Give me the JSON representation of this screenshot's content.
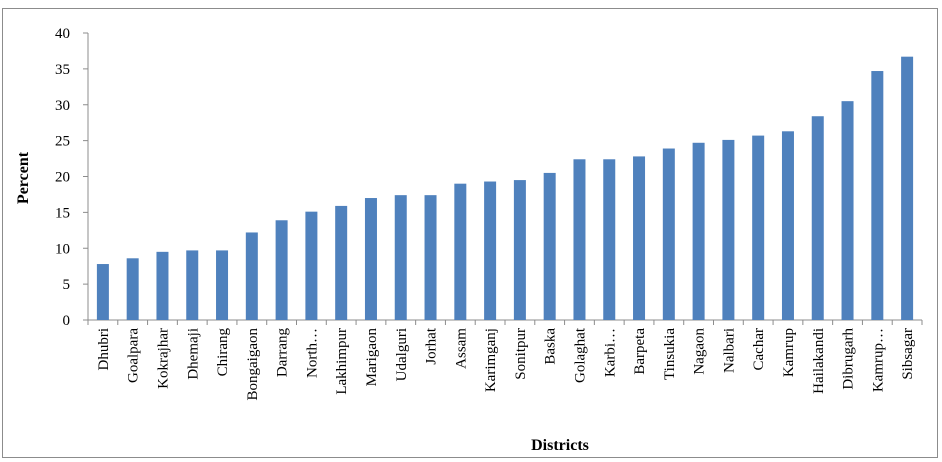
{
  "chart_data": {
    "type": "bar",
    "title": "",
    "xlabel": "Districts",
    "ylabel": "Percent",
    "ylim": [
      0,
      40
    ],
    "yticks": [
      0,
      5,
      10,
      15,
      20,
      25,
      30,
      35,
      40
    ],
    "grid": false,
    "legend": "none",
    "bar_color": "#4f81bd",
    "categories": [
      "Dhubri",
      "Goalpara",
      "Kokrajhar",
      "Dhemaji",
      "Chirang",
      "Bongaigaon",
      "Darrang",
      "North…",
      "Lakhimpur",
      "Marigaon",
      "Udalguri",
      "Jorhat",
      "Assam",
      "Karimganj",
      "Sonitpur",
      "Baska",
      "Golaghat",
      "Karbi…",
      "Barpeta",
      "Tinsukia",
      "Nagaon",
      "Nalbari",
      "Cachar",
      "Kamrup",
      "Hailakandi",
      "Dibrugarh",
      "Kamrup…",
      "Sibsagar"
    ],
    "values": [
      7.8,
      8.6,
      9.5,
      9.7,
      9.7,
      12.2,
      13.9,
      15.1,
      15.9,
      17.0,
      17.4,
      17.4,
      19.0,
      19.3,
      19.5,
      20.5,
      22.4,
      22.4,
      22.8,
      23.9,
      24.7,
      25.1,
      25.7,
      26.3,
      28.4,
      30.5,
      34.7,
      36.7
    ]
  }
}
